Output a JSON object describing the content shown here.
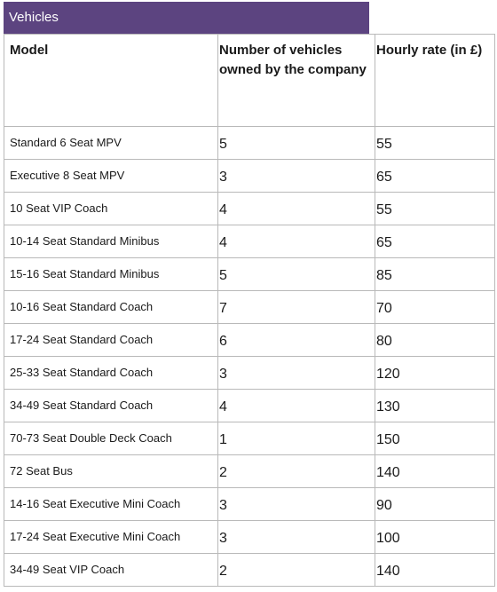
{
  "title": "Vehicles",
  "columns": {
    "model": "Model",
    "owned": "Number of vehicles owned by the company",
    "rate": "Hourly rate (in £)"
  },
  "rows": [
    {
      "model": "Standard 6 Seat MPV",
      "owned": "5",
      "rate": "55"
    },
    {
      "model": "Executive 8 Seat MPV",
      "owned": "3",
      "rate": "65"
    },
    {
      "model": "10 Seat VIP Coach",
      "owned": "4",
      "rate": "55"
    },
    {
      "model": "10-14 Seat Standard Minibus",
      "owned": "4",
      "rate": "65"
    },
    {
      "model": "15-16 Seat Standard Minibus",
      "owned": "5",
      "rate": "85"
    },
    {
      "model": "10-16 Seat Standard Coach",
      "owned": "7",
      "rate": "70"
    },
    {
      "model": "17-24 Seat Standard Coach",
      "owned": "6",
      "rate": "80"
    },
    {
      "model": "25-33 Seat Standard Coach",
      "owned": "3",
      "rate": "120"
    },
    {
      "model": "34-49 Seat Standard Coach",
      "owned": "4",
      "rate": "130"
    },
    {
      "model": "70-73 Seat Double Deck Coach",
      "owned": "1",
      "rate": "150"
    },
    {
      "model": "72 Seat Bus",
      "owned": "2",
      "rate": "140"
    },
    {
      "model": "14-16 Seat Executive Mini Coach",
      "owned": "3",
      "rate": "90"
    },
    {
      "model": "17-24 Seat Executive Mini Coach",
      "owned": "3",
      "rate": "100"
    },
    {
      "model": "34-49 Seat VIP Coach",
      "owned": "2",
      "rate": "140"
    }
  ],
  "colors": {
    "title_background": "#5c4480",
    "title_text": "#ffffff",
    "grid_line": "#b9b9b9"
  }
}
